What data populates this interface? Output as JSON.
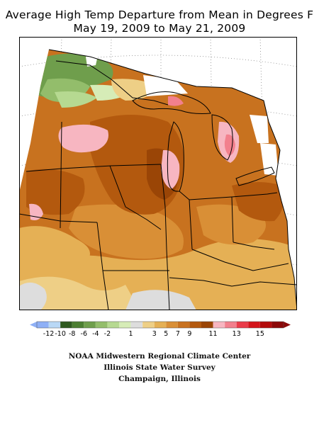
{
  "title_line1": "Average High Temp Departure from Mean in Degrees F",
  "title_line2": "May 19, 2009 to May 21, 2009",
  "legend": {
    "colors": [
      "#8fb0f6",
      "#b9d8f5",
      "#2f5a1f",
      "#4c7f32",
      "#6f9e4c",
      "#93bd6b",
      "#b6d991",
      "#d6ecb7",
      "#dddddd",
      "#eecf86",
      "#e5b055",
      "#d98f36",
      "#c8721f",
      "#b3590e",
      "#9a4506",
      "#f7b6c1",
      "#f2808d",
      "#ea3c4a",
      "#d4141b",
      "#b30c0c",
      "#8c0808"
    ],
    "ticks": [
      "-12",
      "-10",
      "-8",
      "-6",
      "-4",
      "-2",
      "1",
      "3",
      "5",
      "7",
      "9",
      "11",
      "13",
      "15"
    ]
  },
  "credits": {
    "line1": "NOAA Midwestern Regional Climate Center",
    "line2": "Illinois State Water Survey",
    "line3": "Champaign, Illinois"
  }
}
